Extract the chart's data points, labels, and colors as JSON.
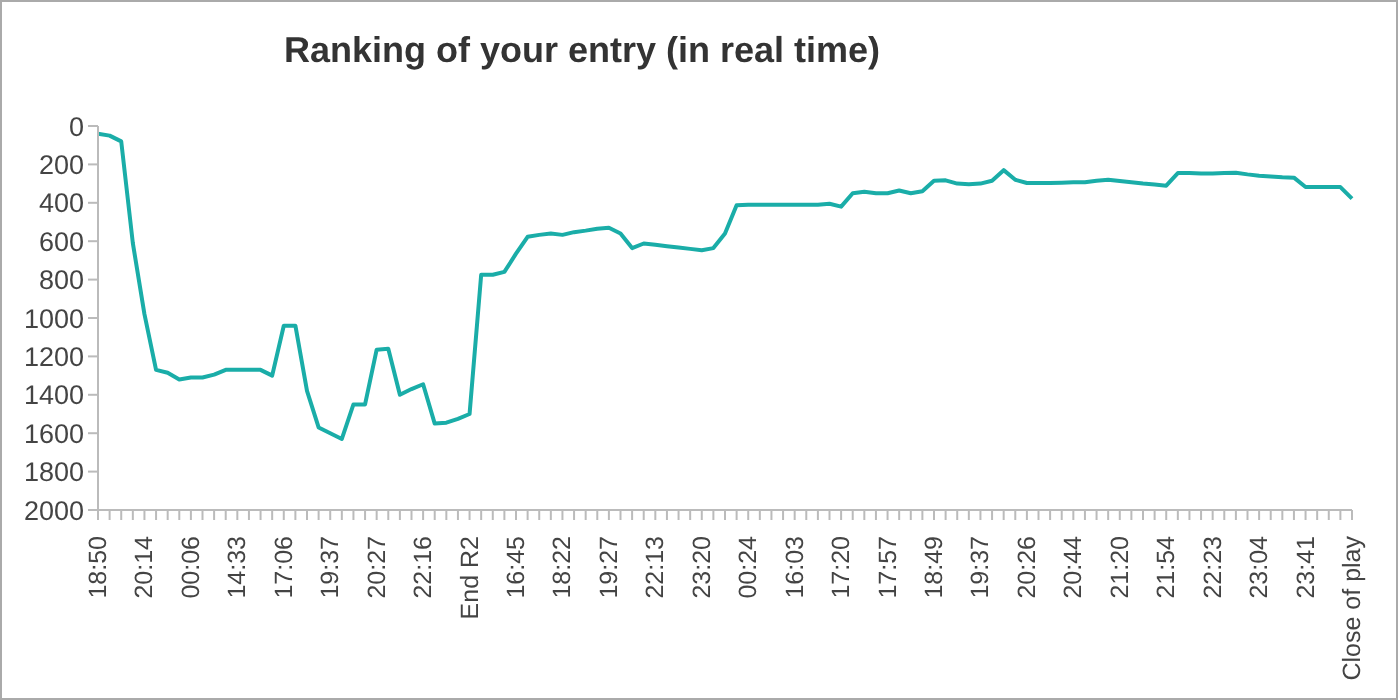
{
  "chart_data": {
    "type": "line",
    "title": "Ranking of your entry (in real time)",
    "categories": [
      "18:50",
      null,
      null,
      null,
      "20:14",
      null,
      null,
      null,
      "00:06",
      null,
      null,
      null,
      "14:33",
      null,
      null,
      null,
      "17:06",
      null,
      null,
      null,
      "19:37",
      null,
      null,
      null,
      "20:27",
      null,
      null,
      null,
      "22:16",
      null,
      null,
      null,
      "End R2",
      null,
      null,
      null,
      "16:45",
      null,
      null,
      null,
      "18:22",
      null,
      null,
      null,
      "19:27",
      null,
      null,
      null,
      "22:13",
      null,
      null,
      null,
      "23:20",
      null,
      null,
      null,
      "00:24",
      null,
      null,
      null,
      "16:03",
      null,
      null,
      null,
      "17:20",
      null,
      null,
      null,
      "17:57",
      null,
      null,
      null,
      "18:49",
      null,
      null,
      null,
      "19:37",
      null,
      null,
      null,
      "20:26",
      null,
      null,
      null,
      "20:44",
      null,
      null,
      null,
      "21:20",
      null,
      null,
      null,
      "21:54",
      null,
      null,
      null,
      "22:23",
      null,
      null,
      null,
      "23:04",
      null,
      null,
      null,
      "23:41",
      null,
      null,
      null,
      "Close of play"
    ],
    "values": [
      40,
      50,
      80,
      610,
      980,
      1270,
      1285,
      1320,
      1310,
      1310,
      1295,
      1270,
      1270,
      1270,
      1270,
      1300,
      1040,
      1040,
      1380,
      1570,
      1600,
      1630,
      1450,
      1450,
      1165,
      1160,
      1400,
      1370,
      1345,
      1550,
      1545,
      1525,
      1500,
      775,
      775,
      760,
      665,
      577,
      567,
      560,
      567,
      553,
      545,
      535,
      530,
      560,
      636,
      612,
      619,
      626,
      633,
      640,
      647,
      636,
      560,
      413,
      410,
      410,
      410,
      410,
      410,
      410,
      410,
      405,
      420,
      350,
      343,
      350,
      350,
      336,
      350,
      340,
      285,
      283,
      300,
      303,
      300,
      285,
      230,
      280,
      297,
      297,
      297,
      295,
      293,
      293,
      285,
      280,
      287,
      293,
      300,
      305,
      311,
      245,
      245,
      248,
      248,
      245,
      243,
      252,
      259,
      263,
      267,
      269,
      318,
      318,
      318,
      318,
      378
    ],
    "color": "#1aada8",
    "ylim": [
      2000,
      0
    ],
    "yticks": [
      0,
      200,
      400,
      600,
      800,
      1000,
      1200,
      1400,
      1600,
      1800,
      2000
    ],
    "marker": "none",
    "line_style": "solid",
    "grid": false,
    "legend": false
  }
}
